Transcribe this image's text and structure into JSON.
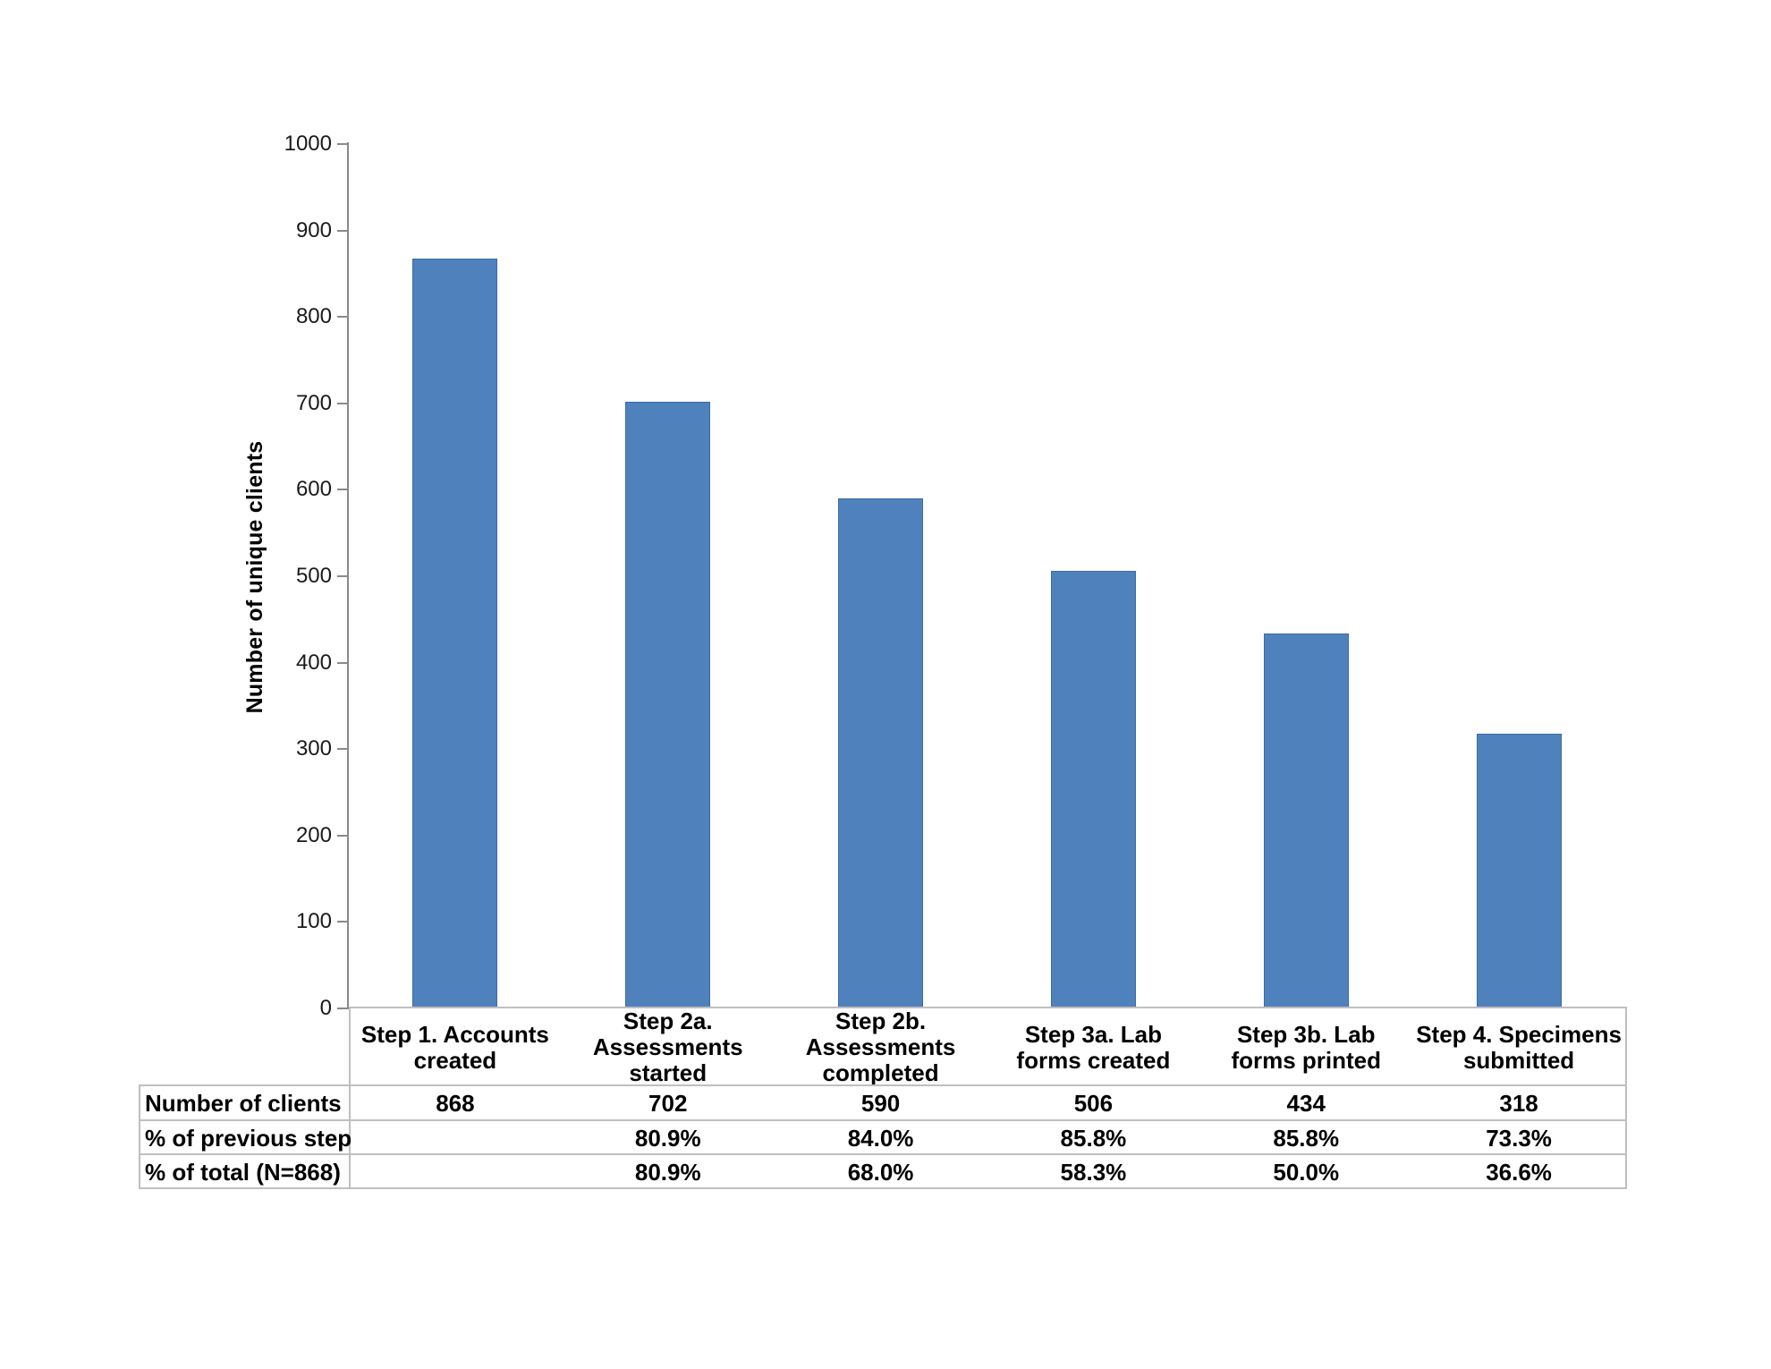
{
  "chart_data": {
    "type": "bar",
    "title": "",
    "xlabel": "",
    "ylabel": "Number of unique clients",
    "ylim": [
      0,
      1000
    ],
    "yticks": [
      0,
      100,
      200,
      300,
      400,
      500,
      600,
      700,
      800,
      900,
      1000
    ],
    "grid": false,
    "legend": "none",
    "categories": [
      "Step 1. Accounts\ncreated",
      "Step 2a.\nAssessments\nstarted",
      "Step 2b.\nAssessments\ncompleted",
      "Step 3a. Lab\nforms created",
      "Step 3b. Lab\nforms printed",
      "Step 4. Specimens\nsubmitted"
    ],
    "values": [
      868,
      702,
      590,
      506,
      434,
      318
    ],
    "colors": {
      "bar_fill": "#4F81BD",
      "bar_border": "#3B6CA5",
      "axis": "#8A8A8A",
      "table_border": "#BFBFBF",
      "text": "#000000",
      "background": "#FFFFFF"
    }
  },
  "table": {
    "rows": [
      {
        "label": "Number of clients",
        "values": [
          "868",
          "702",
          "590",
          "506",
          "434",
          "318"
        ]
      },
      {
        "label": "% of previous step",
        "values": [
          "",
          "80.9%",
          "84.0%",
          "85.8%",
          "85.8%",
          "73.3%"
        ]
      },
      {
        "label": "% of total (N=868)",
        "values": [
          "",
          "80.9%",
          "68.0%",
          "58.3%",
          "50.0%",
          "36.6%"
        ]
      }
    ]
  }
}
